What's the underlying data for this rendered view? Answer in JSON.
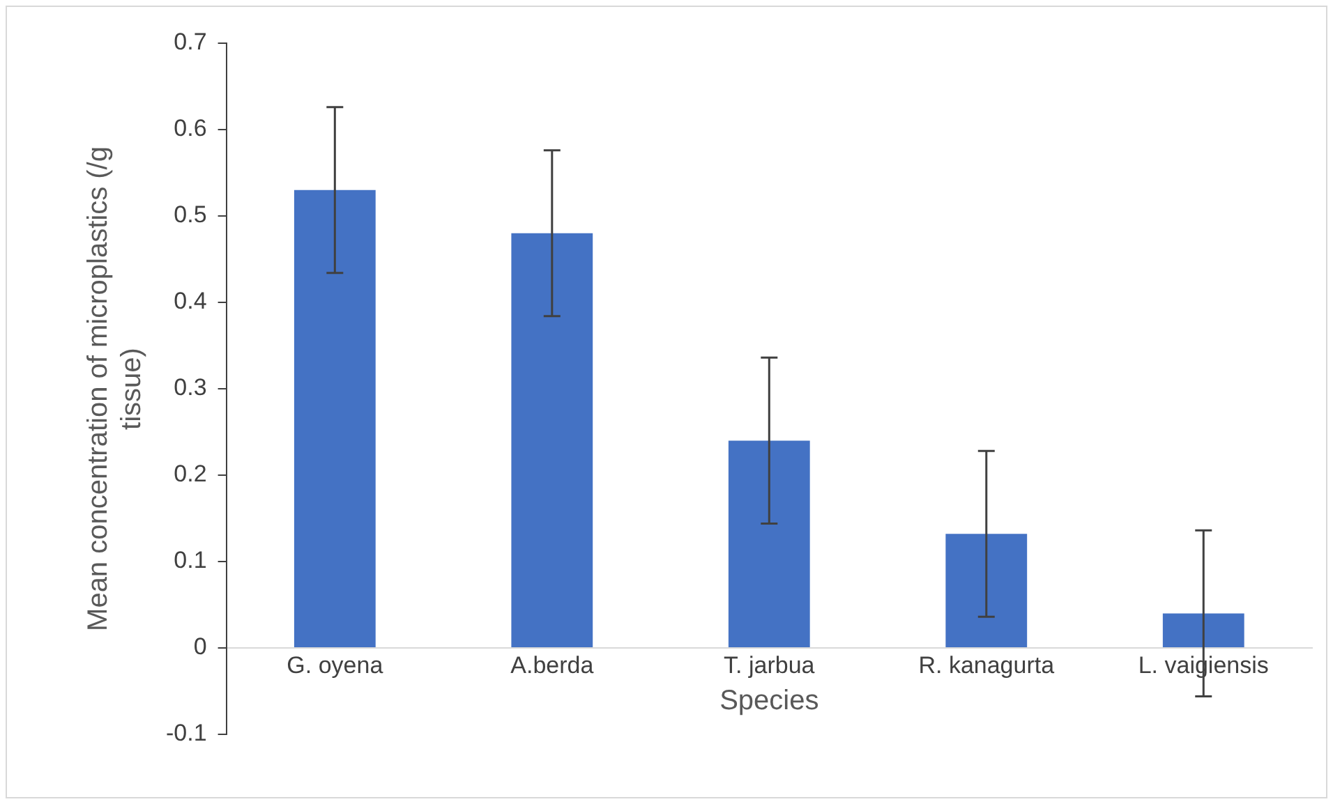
{
  "chart_data": {
    "type": "bar",
    "xlabel": "Species",
    "ylabel": "Mean concentration of microplastics (/g tissue)",
    "categories": [
      "G. oyena",
      "A.berda",
      "T. jarbua",
      "R. kanagurta",
      "L. vaigiensis"
    ],
    "values": [
      0.53,
      0.48,
      0.24,
      0.132,
      0.04
    ],
    "errors": [
      0.096,
      0.096,
      0.096,
      0.096,
      0.096
    ],
    "color": "#4472c4",
    "ylim": [
      -0.1,
      0.7
    ],
    "yticks": [
      -0.1,
      0,
      0.1,
      0.2,
      0.3,
      0.4,
      0.5,
      0.6,
      0.7
    ],
    "grid": false,
    "legend": false
  }
}
